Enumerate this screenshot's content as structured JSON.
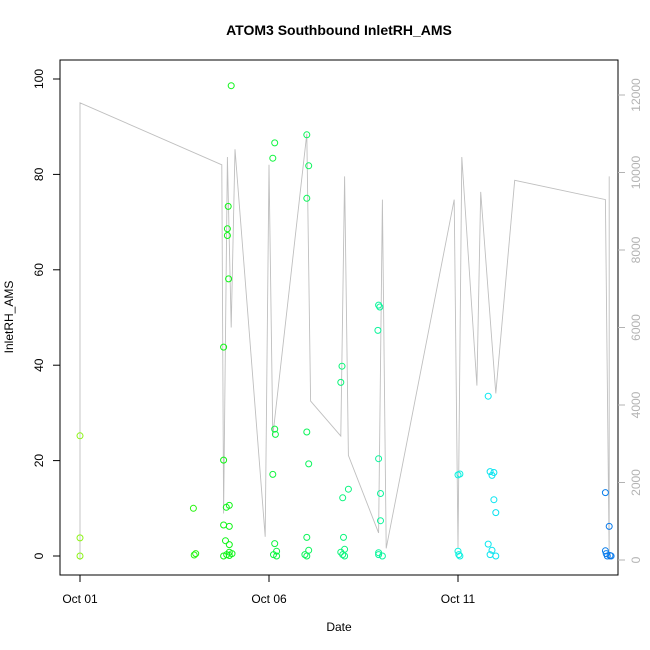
{
  "chart_data": {
    "type": "scatter",
    "title": "ATOM3 Southbound InletRH_AMS",
    "xlabel": "Date",
    "ylabel": "InletRH_AMS",
    "x_ticks": [
      {
        "label": "Oct 01",
        "day": 1.0
      },
      {
        "label": "Oct 06",
        "day": 6.0
      },
      {
        "label": "Oct 11",
        "day": 11.0
      }
    ],
    "y_left": {
      "ylim": [
        0,
        100
      ],
      "ticks": [
        0,
        20,
        40,
        60,
        80,
        100
      ],
      "tick_labels": [
        "0",
        "20",
        "40",
        "60",
        "80",
        "100"
      ]
    },
    "y_right": {
      "ylim": [
        0,
        12000
      ],
      "ticks": [
        0,
        2000,
        4000,
        6000,
        8000,
        10000,
        12000
      ],
      "tick_labels": [
        "0",
        "2000",
        "4000",
        "6000",
        "8000",
        "10000",
        "12000"
      ]
    },
    "xlim_days": [
      0.5,
      15.5
    ],
    "grid": false,
    "legend": "none",
    "colors": {
      "right_axis": "#b3b3b3",
      "trace_line": "#bfbfbf",
      "axis": "#000000"
    },
    "trace_series": [
      [
        1.0,
        0
      ],
      [
        1.0,
        11800
      ],
      [
        4.75,
        10200
      ],
      [
        4.8,
        1200
      ],
      [
        4.9,
        10400
      ],
      [
        5.0,
        6000
      ],
      [
        5.1,
        10600
      ],
      [
        5.9,
        600
      ],
      [
        6.0,
        10200
      ],
      [
        6.1,
        3200
      ],
      [
        7.0,
        11000
      ],
      [
        7.1,
        4100
      ],
      [
        7.9,
        3200
      ],
      [
        8.0,
        9900
      ],
      [
        8.1,
        2700
      ],
      [
        8.9,
        700
      ],
      [
        9.0,
        9300
      ],
      [
        9.1,
        300
      ],
      [
        10.9,
        9300
      ],
      [
        11.0,
        300
      ],
      [
        11.1,
        10400
      ],
      [
        11.5,
        4500
      ],
      [
        11.6,
        9500
      ],
      [
        12.0,
        4300
      ],
      [
        12.5,
        9800
      ],
      [
        14.9,
        9300
      ],
      [
        15.0,
        0
      ],
      [
        15.0,
        9900
      ]
    ],
    "points": [
      {
        "x": 1.0,
        "y": 25.2
      },
      {
        "x": 1.0,
        "y": 3.8
      },
      {
        "x": 1.0,
        "y": 0.0
      },
      {
        "x": 4.0,
        "y": 10.0
      },
      {
        "x": 4.02,
        "y": 0.2
      },
      {
        "x": 4.06,
        "y": 0.5
      },
      {
        "x": 4.8,
        "y": 43.8
      },
      {
        "x": 4.8,
        "y": 20.1
      },
      {
        "x": 4.8,
        "y": 6.5
      },
      {
        "x": 4.8,
        "y": 0.0
      },
      {
        "x": 4.85,
        "y": 3.2
      },
      {
        "x": 4.87,
        "y": 10.2
      },
      {
        "x": 4.88,
        "y": 0.3
      },
      {
        "x": 4.9,
        "y": 67.2
      },
      {
        "x": 4.9,
        "y": 68.6
      },
      {
        "x": 4.92,
        "y": 73.3
      },
      {
        "x": 4.93,
        "y": 58.1
      },
      {
        "x": 4.95,
        "y": 10.6
      },
      {
        "x": 4.95,
        "y": 6.2
      },
      {
        "x": 4.95,
        "y": 2.4
      },
      {
        "x": 4.95,
        "y": 0.8
      },
      {
        "x": 4.95,
        "y": 0.1
      },
      {
        "x": 5.0,
        "y": 98.6
      },
      {
        "x": 5.02,
        "y": 0.5
      },
      {
        "x": 6.1,
        "y": 83.4
      },
      {
        "x": 6.15,
        "y": 86.6
      },
      {
        "x": 6.1,
        "y": 17.1
      },
      {
        "x": 6.15,
        "y": 26.6
      },
      {
        "x": 6.17,
        "y": 25.5
      },
      {
        "x": 6.15,
        "y": 2.6
      },
      {
        "x": 6.2,
        "y": 1.0
      },
      {
        "x": 6.12,
        "y": 0.3
      },
      {
        "x": 6.2,
        "y": 0.0
      },
      {
        "x": 7.0,
        "y": 88.3
      },
      {
        "x": 7.0,
        "y": 75.0
      },
      {
        "x": 7.05,
        "y": 81.8
      },
      {
        "x": 7.0,
        "y": 26.0
      },
      {
        "x": 7.05,
        "y": 19.3
      },
      {
        "x": 7.0,
        "y": 3.9
      },
      {
        "x": 7.05,
        "y": 1.2
      },
      {
        "x": 6.95,
        "y": 0.3
      },
      {
        "x": 7.0,
        "y": 0.0
      },
      {
        "x": 7.93,
        "y": 39.8
      },
      {
        "x": 7.9,
        "y": 36.4
      },
      {
        "x": 8.1,
        "y": 14.0
      },
      {
        "x": 7.95,
        "y": 12.2
      },
      {
        "x": 7.97,
        "y": 3.9
      },
      {
        "x": 8.0,
        "y": 1.4
      },
      {
        "x": 7.9,
        "y": 0.8
      },
      {
        "x": 7.95,
        "y": 0.3
      },
      {
        "x": 8.0,
        "y": 0.0
      },
      {
        "x": 8.9,
        "y": 52.6
      },
      {
        "x": 8.93,
        "y": 52.2
      },
      {
        "x": 8.88,
        "y": 47.3
      },
      {
        "x": 8.9,
        "y": 20.4
      },
      {
        "x": 8.95,
        "y": 13.1
      },
      {
        "x": 8.95,
        "y": 7.4
      },
      {
        "x": 8.9,
        "y": 0.7
      },
      {
        "x": 8.9,
        "y": 0.3
      },
      {
        "x": 9.0,
        "y": 0.0
      },
      {
        "x": 11.0,
        "y": 17.0
      },
      {
        "x": 11.05,
        "y": 17.2
      },
      {
        "x": 11.0,
        "y": 1.0
      },
      {
        "x": 11.02,
        "y": 0.3
      },
      {
        "x": 11.05,
        "y": 0.0
      },
      {
        "x": 11.8,
        "y": 33.5
      },
      {
        "x": 11.85,
        "y": 17.7
      },
      {
        "x": 11.9,
        "y": 16.9
      },
      {
        "x": 11.95,
        "y": 17.5
      },
      {
        "x": 11.95,
        "y": 11.8
      },
      {
        "x": 12.0,
        "y": 9.1
      },
      {
        "x": 11.8,
        "y": 2.5
      },
      {
        "x": 11.9,
        "y": 1.2
      },
      {
        "x": 11.85,
        "y": 0.3
      },
      {
        "x": 12.0,
        "y": 0.0
      },
      {
        "x": 14.9,
        "y": 13.3
      },
      {
        "x": 15.0,
        "y": 6.2
      },
      {
        "x": 14.9,
        "y": 1.1
      },
      {
        "x": 14.92,
        "y": 0.5
      },
      {
        "x": 14.95,
        "y": 0.0
      },
      {
        "x": 15.02,
        "y": 0.1
      },
      {
        "x": 15.05,
        "y": 0.0
      }
    ]
  }
}
